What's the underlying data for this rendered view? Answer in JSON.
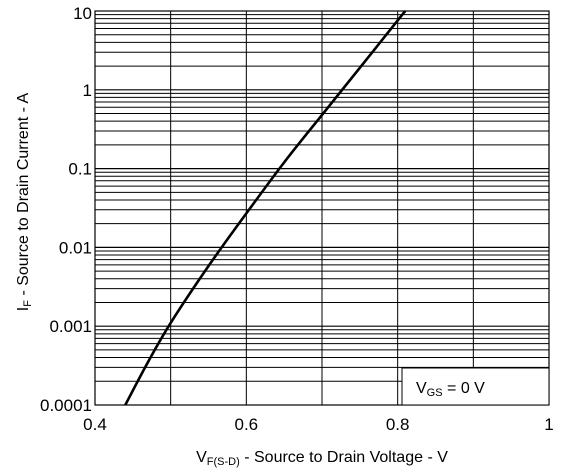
{
  "chart_data": {
    "type": "line",
    "title": "",
    "x_axis": {
      "label_main": "V",
      "label_sub": "F(S-D)",
      "label_rest": " - Source to Drain Voltage - V",
      "range": [
        0.4,
        1.0
      ],
      "major_ticks": [
        0.4,
        0.6,
        0.8,
        1.0
      ],
      "tick_labels": [
        "0.4",
        "0.6",
        "0.8",
        "1"
      ],
      "minor_step": 0.1,
      "scale": "linear"
    },
    "y_axis": {
      "label_main": "I",
      "label_sub": "F",
      "label_rest": " - Source to Drain Current - A",
      "range": [
        0.0001,
        10
      ],
      "decades": [
        0.0001,
        0.001,
        0.01,
        0.1,
        1,
        10
      ],
      "tick_labels": [
        "0.0001",
        "0.001",
        "0.01",
        "0.1",
        "1",
        "10"
      ],
      "scale": "log"
    },
    "grid": true,
    "annotation": {
      "main": "V",
      "sub": "GS",
      "rest": " = 0 V"
    },
    "series": [
      {
        "x": [
          0.44,
          0.47,
          0.5,
          0.55,
          0.6,
          0.65,
          0.7,
          0.75,
          0.8,
          0.81
        ],
        "y": [
          0.0001,
          0.00035,
          0.0011,
          0.0058,
          0.027,
          0.12,
          0.48,
          1.9,
          7.6,
          10
        ]
      }
    ]
  }
}
